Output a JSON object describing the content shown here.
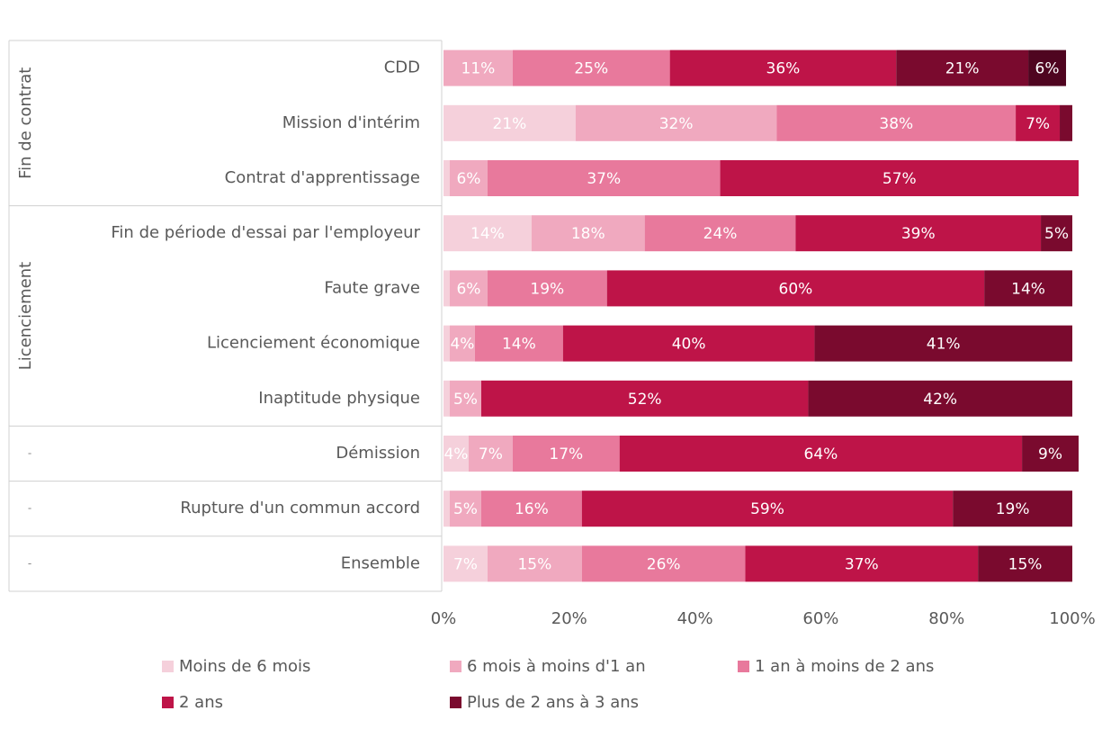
{
  "chart_data": {
    "type": "bar",
    "orientation": "horizontal",
    "stacked": true,
    "percent": true,
    "groups": [
      {
        "label": "Fin de contrat",
        "categories": [
          "CDD",
          "Mission d'intérim",
          "Contrat d'apprentissage"
        ]
      },
      {
        "label": "Licenciement",
        "categories": [
          "Fin de période d'essai par l'employeur",
          "Faute grave",
          "Licenciement économique",
          "Inaptitude physique"
        ]
      },
      {
        "label": "-",
        "categories": [
          "Démission"
        ]
      },
      {
        "label": "-",
        "categories": [
          "Rupture d'un commun accord"
        ]
      },
      {
        "label": "-",
        "categories": [
          "Ensemble"
        ]
      }
    ],
    "categories": [
      "CDD",
      "Mission d'intérim",
      "Contrat d'apprentissage",
      "Fin de période d'essai par l'employeur",
      "Faute grave",
      "Licenciement économique",
      "Inaptitude physique",
      "Démission",
      "Rupture d'un commun accord",
      "Ensemble"
    ],
    "series": [
      {
        "name": "Moins de 6 mois",
        "color": "#f5d0db",
        "values": [
          0,
          21,
          1,
          14,
          1,
          1,
          1,
          4,
          1,
          7
        ],
        "labels": [
          "",
          "21%",
          "",
          "14%",
          "",
          "",
          "",
          "4%",
          "",
          "7%"
        ]
      },
      {
        "name": "6 mois à moins d'1 an",
        "color": "#f0a9bf",
        "values": [
          11,
          32,
          6,
          18,
          6,
          4,
          5,
          7,
          5,
          15
        ],
        "labels": [
          "11%",
          "32%",
          "6%",
          "18%",
          "6%",
          "4%",
          "5%",
          "7%",
          "5%",
          "15%"
        ]
      },
      {
        "name": "1 an à moins de 2 ans",
        "color": "#e8799c",
        "values": [
          25,
          38,
          37,
          24,
          19,
          14,
          0,
          17,
          16,
          26
        ],
        "labels": [
          "25%",
          "38%",
          "37%",
          "24%",
          "19%",
          "14%",
          "",
          "17%",
          "16%",
          "26%"
        ]
      },
      {
        "name": "2 ans",
        "color": "#be1448",
        "values": [
          36,
          7,
          57,
          39,
          60,
          40,
          52,
          64,
          59,
          37
        ],
        "labels": [
          "36%",
          "7%",
          "57%",
          "39%",
          "60%",
          "40%",
          "52%",
          "64%",
          "59%",
          "37%"
        ]
      },
      {
        "name": "Plus de 2 ans à 3 ans",
        "color": "#7a0a2e",
        "values": [
          21,
          2,
          0,
          5,
          14,
          41,
          42,
          9,
          19,
          15
        ],
        "labels": [
          "21%",
          "",
          "",
          "5%",
          "14%",
          "41%",
          "42%",
          "9%",
          "19%",
          "15%"
        ]
      },
      {
        "name": "",
        "color": "#4f0520",
        "values": [
          6,
          0,
          0,
          0,
          0,
          0,
          0,
          0,
          0,
          0
        ],
        "labels": [
          "6%",
          "",
          "",
          "",
          "",
          "",
          "",
          "",
          "",
          ""
        ]
      }
    ],
    "xlim": [
      0,
      100
    ],
    "xticks": [
      "0%",
      "20%",
      "40%",
      "60%",
      "80%",
      "100%"
    ],
    "legend_position": "bottom",
    "grid": false
  }
}
